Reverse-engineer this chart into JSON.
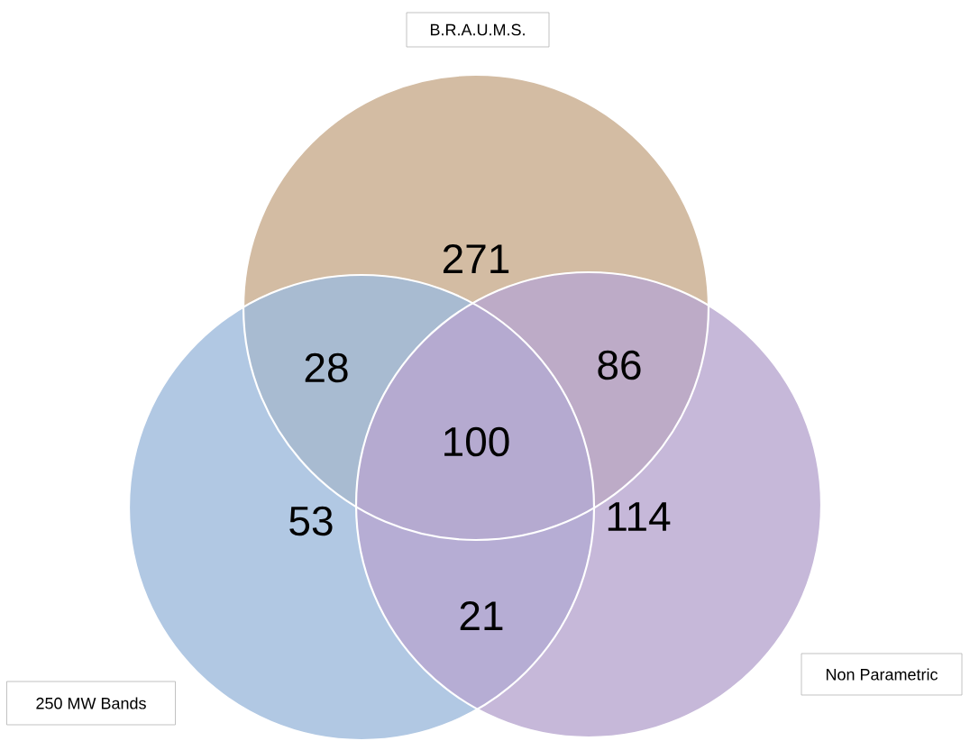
{
  "chart_data": {
    "type": "other",
    "annotations": [
      "B.R.A.U.M.S.",
      "250 MW Bands",
      "Non Parametric"
    ],
    "categories": [
      null,
      null,
      null,
      null,
      null,
      null,
      null
    ],
    "values": [
      271,
      28,
      86,
      100,
      53,
      114,
      21
    ],
    "data_labels": true
  }
}
